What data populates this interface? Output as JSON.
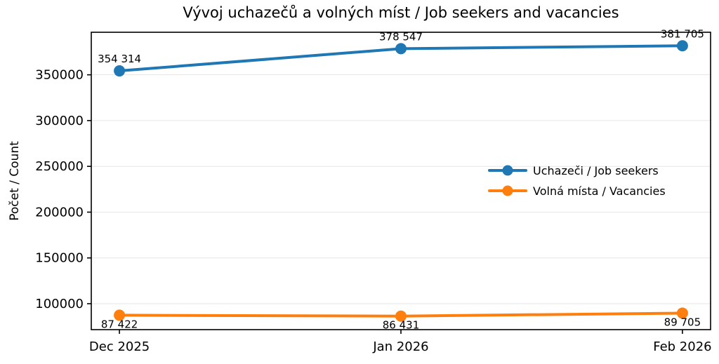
{
  "window": {
    "background": "#ffffff"
  },
  "chart_data": {
    "type": "line",
    "title": "Vývoj uchazečů a volných míst / Job seekers and vacancies",
    "xlabel": "",
    "ylabel": "Počet / Count",
    "categories": [
      "Dec 2025",
      "Jan 2026",
      "Feb 2026"
    ],
    "series": [
      {
        "name": "Uchazeči / Job seekers",
        "color": "#1f77b4",
        "values": [
          354314,
          378547,
          381705
        ],
        "point_labels": [
          "354 314",
          "378 547",
          "381 705"
        ],
        "label_position": "above"
      },
      {
        "name": "Volná místa / Vacancies",
        "color": "#ff7f0e",
        "values": [
          87422,
          86431,
          89705
        ],
        "point_labels": [
          "87 422",
          "86 431",
          "89 705"
        ],
        "label_position": "below"
      }
    ],
    "yticks": [
      100000,
      150000,
      200000,
      250000,
      300000,
      350000
    ],
    "ytick_labels": [
      "100000",
      "150000",
      "200000",
      "250000",
      "300000",
      "350000"
    ],
    "ylim": [
      71667,
      396470
    ],
    "grid": "horizontal",
    "gridline_color": "#e6e6e6",
    "axis_color": "#000000",
    "legend_position": "center-right"
  }
}
